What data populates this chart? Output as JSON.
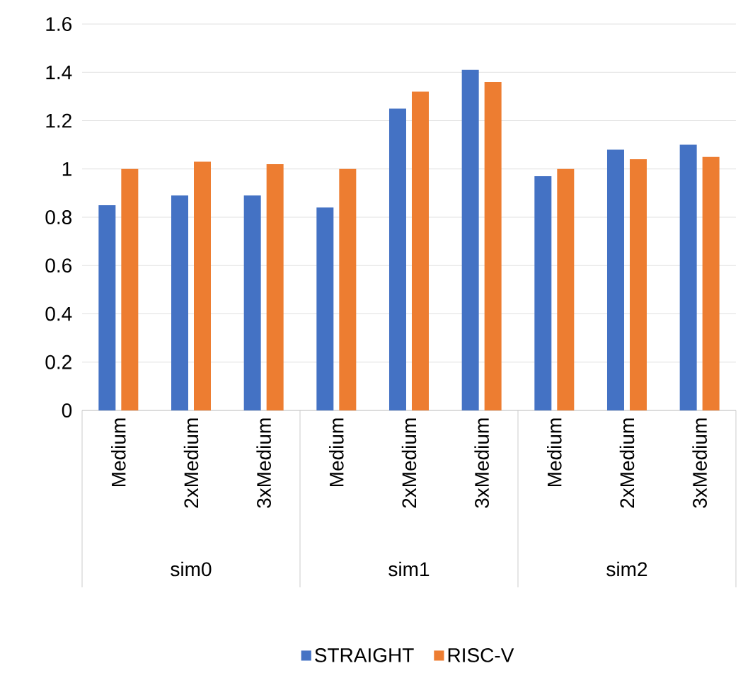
{
  "chart_data": {
    "type": "bar",
    "categories": [
      "Medium",
      "2xMedium",
      "3xMedium",
      "Medium",
      "2xMedium",
      "3xMedium",
      "Medium",
      "2xMedium",
      "3xMedium"
    ],
    "series": [
      {
        "name": "STRAIGHT",
        "color": "#4472c4",
        "values": [
          0.85,
          0.89,
          0.89,
          0.84,
          1.25,
          1.41,
          0.97,
          1.08,
          1.1
        ]
      },
      {
        "name": "RISC-V",
        "color": "#ed7d31",
        "values": [
          1.0,
          1.03,
          1.02,
          1.0,
          1.32,
          1.36,
          1.0,
          1.04,
          1.05
        ]
      }
    ],
    "annotations": [
      "sim0",
      "sim1",
      "sim2"
    ],
    "ylim": [
      0,
      1.6
    ],
    "yticks": [
      0,
      0.2,
      0.4,
      0.6,
      0.8,
      1,
      1.2,
      1.4,
      1.6
    ],
    "grid": "y",
    "legend": "bottom"
  }
}
